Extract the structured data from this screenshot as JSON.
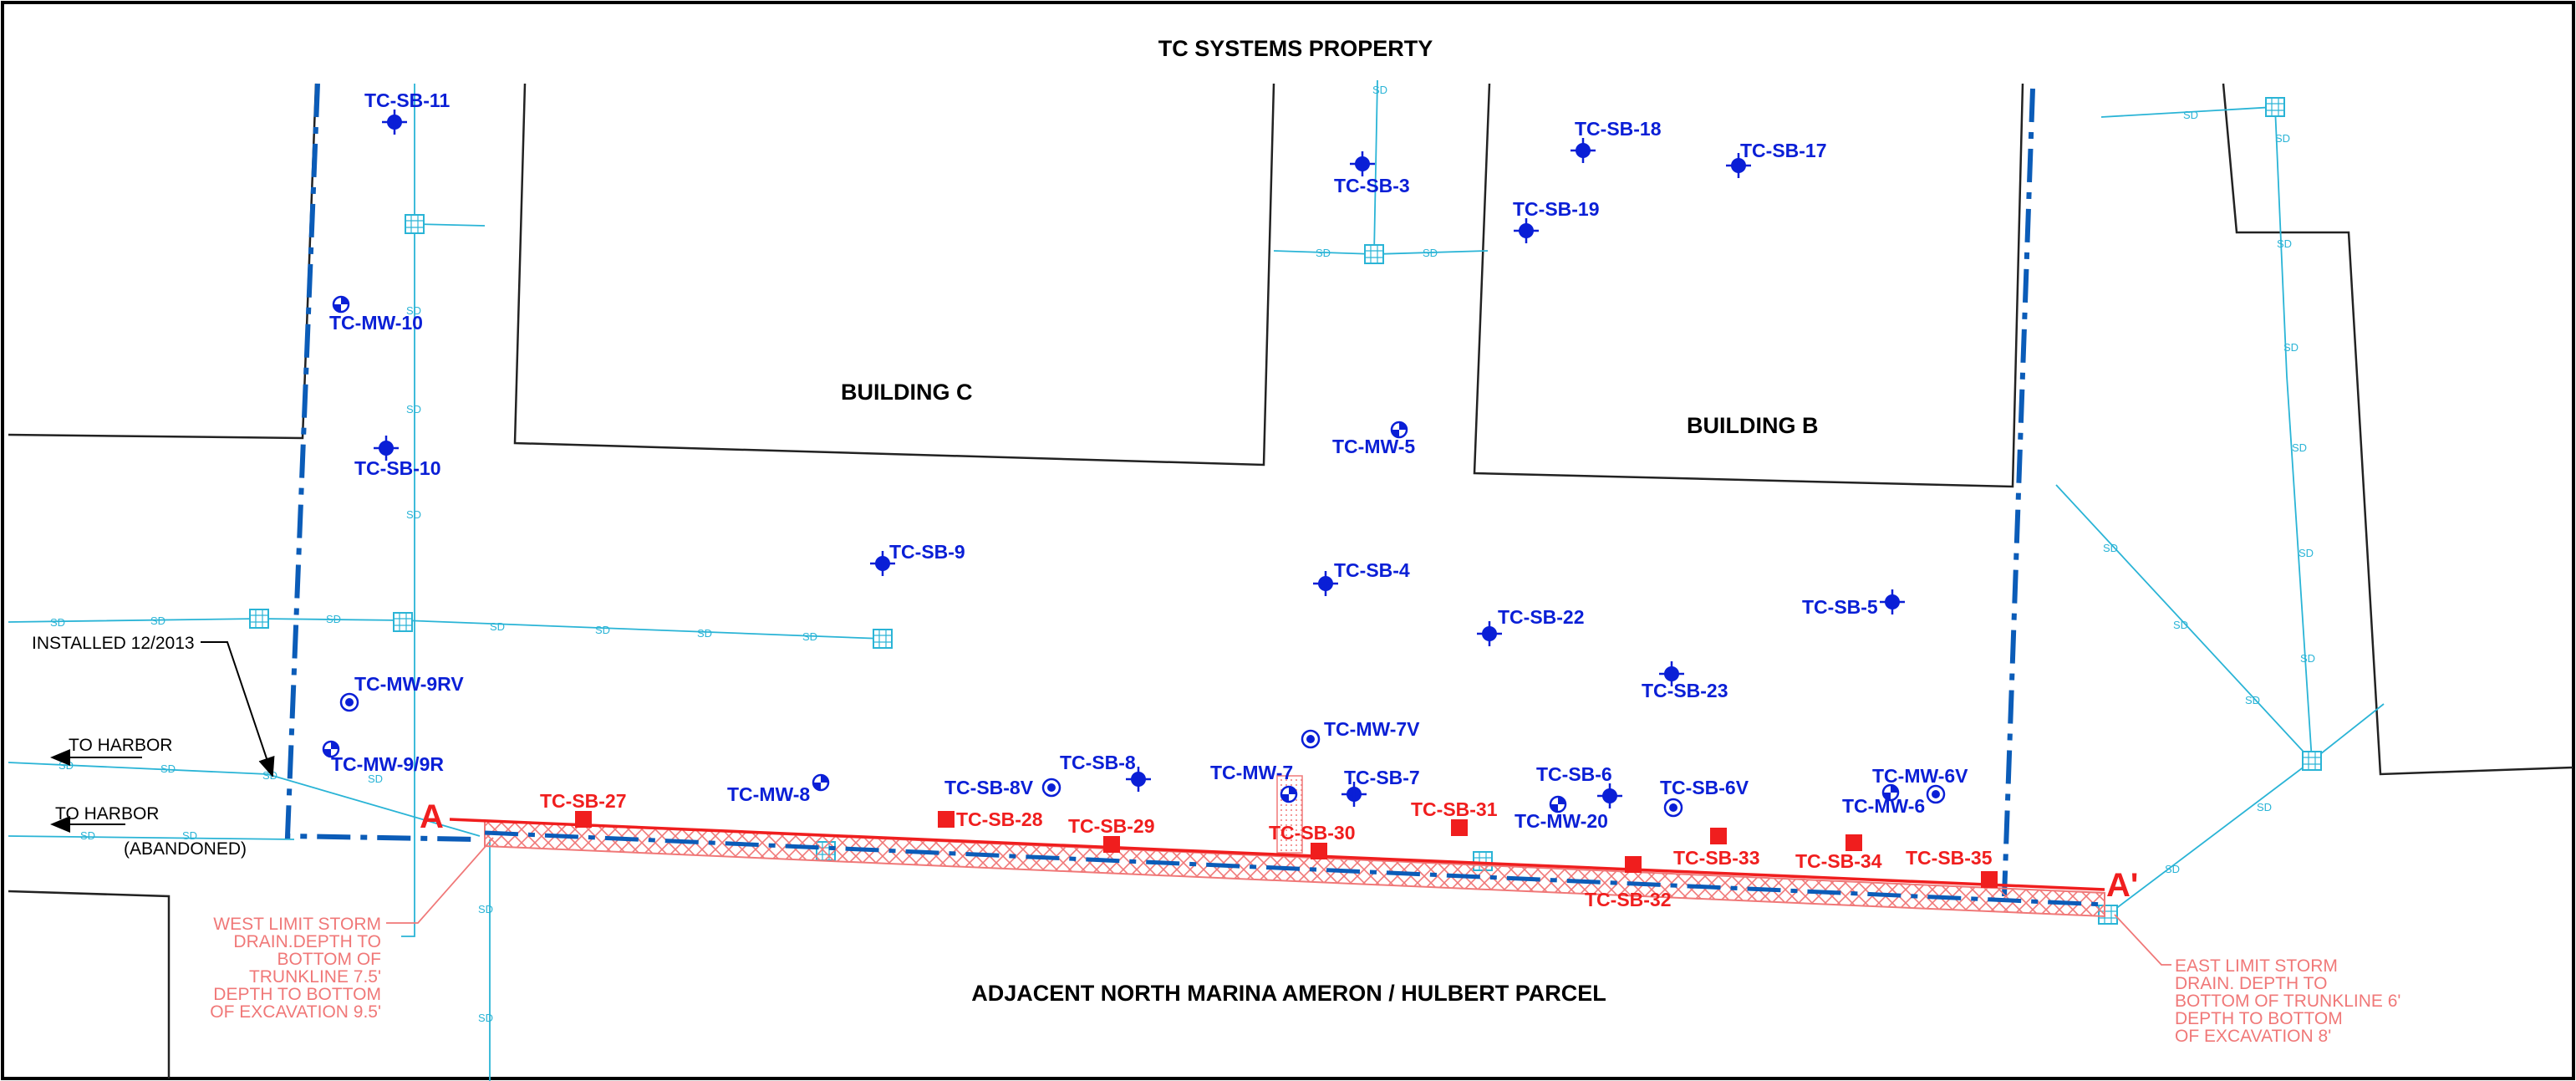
{
  "map": {
    "top_label": "TC SYSTEMS PROPERTY",
    "bottom_label": "ADJACENT NORTH MARINA AMERON / HULBERT PARCEL",
    "buildings": [
      {
        "id": "building-c",
        "label": "BUILDING C"
      },
      {
        "id": "building-b",
        "label": "BUILDING B"
      }
    ],
    "section_line": {
      "start": "A",
      "end": "A'"
    },
    "notes": {
      "installed": "INSTALLED 12/2013",
      "to_harbor_1": "TO HARBOR",
      "to_harbor_2": "TO HARBOR",
      "abandoned": "(ABANDONED)"
    },
    "west_limit": [
      "WEST LIMIT STORM",
      "DRAIN.DEPTH TO",
      "BOTTOM OF",
      "TRUNKLINE 7.5'",
      "DEPTH TO BOTTOM",
      "OF EXCAVATION 9.5'"
    ],
    "east_limit": [
      "EAST LIMIT STORM",
      "DRAIN. DEPTH TO",
      "BOTTOM OF TRUNKLINE 6'",
      "DEPTH TO BOTTOM",
      "OF EXCAVATION 8'"
    ],
    "storm_drain_label": "SD",
    "colors": {
      "existing_points": "#0a1fd6",
      "new_points": "#f01e1e",
      "storm_drain": "#2ab4d6",
      "property_line": "#0b5cb8",
      "excavation": "#f07878"
    },
    "soil_borings_existing": [
      "TC-SB-11",
      "TC-SB-10",
      "TC-SB-9",
      "TC-SB-3",
      "TC-SB-18",
      "TC-SB-17",
      "TC-SB-19",
      "TC-SB-4",
      "TC-SB-22",
      "TC-SB-5",
      "TC-SB-23",
      "TC-SB-8",
      "TC-SB-7",
      "TC-SB-6"
    ],
    "monitoring_wells": [
      "TC-MW-10",
      "TC-MW-9RV",
      "TC-MW-9/9R",
      "TC-MW-8",
      "TC-SB-8V",
      "TC-MW-7V",
      "TC-MW-7",
      "TC-MW-5",
      "TC-MW-20",
      "TC-SB-6V",
      "TC-MW-6V",
      "TC-MW-6"
    ],
    "soil_borings_new": [
      "TC-SB-27",
      "TC-SB-28",
      "TC-SB-29",
      "TC-SB-30",
      "TC-SB-31",
      "TC-SB-32",
      "TC-SB-33",
      "TC-SB-34",
      "TC-SB-35"
    ]
  }
}
